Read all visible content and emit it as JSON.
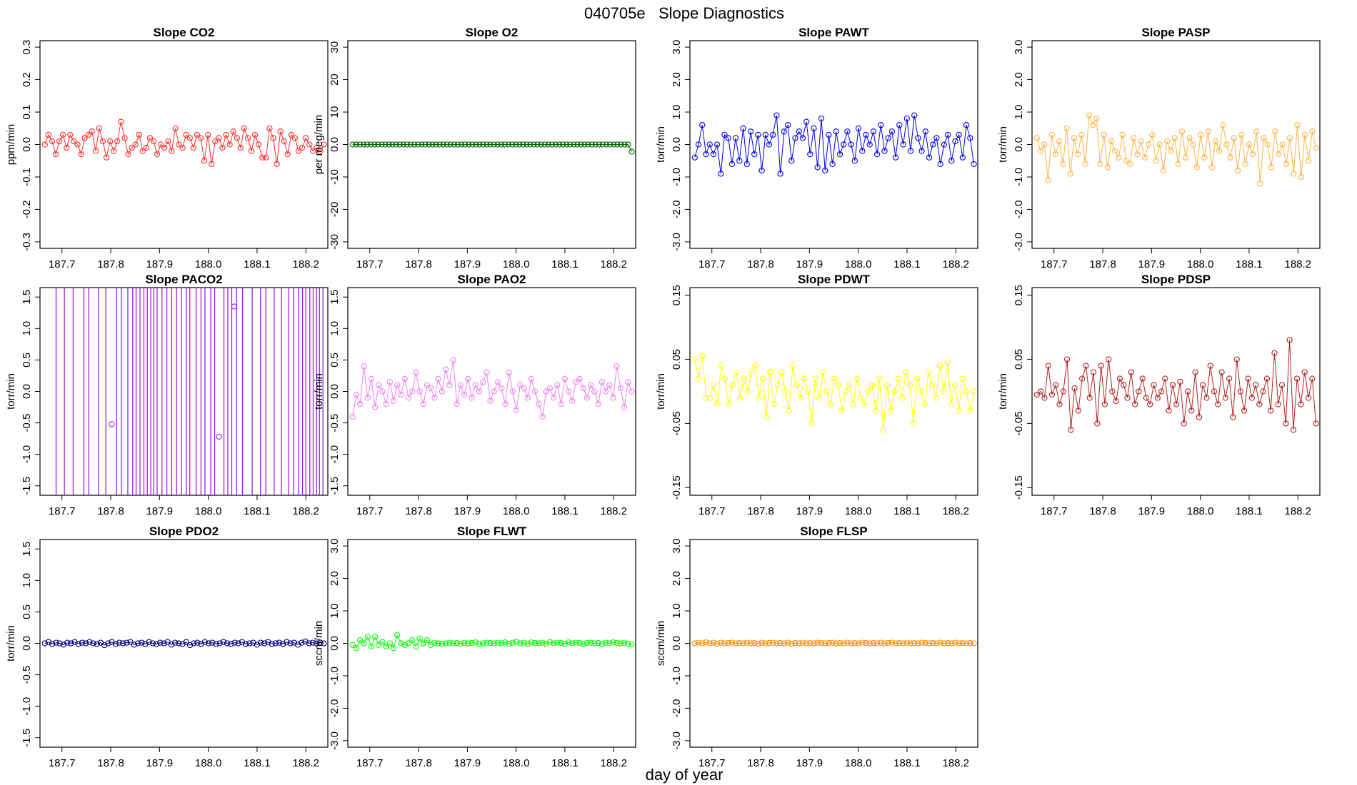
{
  "figure": {
    "title": "040705e   Slope Diagnostics",
    "xlabel": "day of year"
  },
  "chart_data": [
    {
      "id": "co2",
      "type": "scatter",
      "title": "Slope CO2",
      "ylabel": "ppm/min",
      "color": "#ff2a2a",
      "xlim": [
        187.655,
        188.245
      ],
      "ylim": [
        -0.32,
        0.32
      ],
      "xticks": [
        187.7,
        187.8,
        187.9,
        188.0,
        188.1,
        188.2
      ],
      "yticks": [
        -0.3,
        -0.2,
        -0.1,
        0.0,
        0.1,
        0.2,
        0.3
      ],
      "x_start": 187.665,
      "x_end": 188.237,
      "lines": true,
      "values": [
        0.0,
        0.03,
        0.01,
        -0.03,
        0.01,
        0.03,
        -0.01,
        0.03,
        0.01,
        0.0,
        -0.03,
        0.02,
        0.03,
        0.04,
        -0.02,
        0.05,
        0.01,
        -0.04,
        0.01,
        -0.02,
        0.01,
        0.07,
        0.02,
        -0.03,
        -0.01,
        0.0,
        0.03,
        -0.02,
        -0.01,
        0.02,
        0.01,
        -0.03,
        0.0,
        -0.01,
        0.01,
        -0.02,
        0.05,
        0.0,
        -0.01,
        0.03,
        0.02,
        -0.01,
        0.03,
        0.02,
        -0.05,
        0.03,
        -0.06,
        0.01,
        0.02,
        -0.01,
        0.03,
        0.0,
        0.04,
        0.02,
        -0.01,
        0.05,
        0.02,
        -0.02,
        0.03,
        0.0,
        -0.04,
        -0.04,
        0.05,
        0.02,
        -0.06,
        0.04,
        0.01,
        -0.03,
        0.03,
        0.02,
        -0.02,
        -0.01,
        0.02,
        0.0,
        -0.02,
        -0.01,
        -0.02,
        0.0
      ]
    },
    {
      "id": "o2",
      "type": "scatter",
      "title": "Slope O2",
      "ylabel": "per meg/min",
      "color": "#006400",
      "xlim": [
        187.655,
        188.245
      ],
      "ylim": [
        -32,
        32
      ],
      "xticks": [
        187.7,
        187.8,
        187.9,
        188.0,
        188.1,
        188.2
      ],
      "yticks": [
        -30,
        -20,
        -10,
        0,
        10,
        20,
        30
      ],
      "x_start": 187.665,
      "x_end": 188.237,
      "lines": true,
      "values": [
        0,
        0,
        0,
        0,
        0,
        0,
        0,
        0,
        0,
        0,
        0,
        0,
        0,
        0,
        0,
        0,
        0,
        0,
        0,
        0,
        0,
        0,
        0,
        0,
        0,
        0,
        0,
        0,
        0,
        0,
        0,
        0,
        0,
        0,
        0,
        0,
        0,
        0,
        0,
        0,
        0,
        0,
        0,
        0,
        0,
        0,
        0,
        0,
        0,
        0,
        0,
        0,
        0,
        0,
        0,
        0,
        0,
        0,
        0,
        0,
        0,
        0,
        0,
        0,
        0,
        0,
        0,
        0,
        0,
        0,
        0,
        0,
        0,
        0,
        0,
        0,
        0,
        -2.2
      ]
    },
    {
      "id": "pawt",
      "type": "scatter",
      "title": "Slope PAWT",
      "ylabel": "torr/min",
      "color": "#0000ee",
      "xlim": [
        187.655,
        188.245
      ],
      "ylim": [
        -3.2,
        3.2
      ],
      "xticks": [
        187.7,
        187.8,
        187.9,
        188.0,
        188.1,
        188.2
      ],
      "yticks": [
        -3,
        -2,
        -1,
        0,
        1,
        2,
        3
      ],
      "x_start": 187.665,
      "x_end": 188.237,
      "lines": true,
      "values": [
        -0.4,
        0.0,
        0.6,
        -0.3,
        0.0,
        -0.3,
        0.0,
        -0.9,
        0.3,
        0.2,
        -0.6,
        0.2,
        -0.5,
        0.5,
        -0.6,
        0.4,
        -0.3,
        0.3,
        -0.8,
        0.3,
        0.0,
        0.3,
        0.9,
        -0.9,
        0.4,
        0.6,
        -0.5,
        0.2,
        0.4,
        0.2,
        0.7,
        -0.3,
        0.5,
        -0.7,
        0.8,
        -0.8,
        0.3,
        -0.6,
        0.4,
        -0.3,
        0.0,
        0.4,
        0.0,
        -0.5,
        0.5,
        -0.2,
        0.3,
        0.0,
        0.4,
        -0.3,
        0.6,
        -0.2,
        0.2,
        0.4,
        -0.4,
        0.6,
        0.0,
        0.8,
        -0.2,
        0.9,
        0.2,
        -0.2,
        0.4,
        -0.4,
        0.0,
        0.2,
        -0.6,
        0.0,
        0.3,
        -0.5,
        0.1,
        0.3,
        -0.4,
        0.6,
        0.2,
        -0.6
      ]
    },
    {
      "id": "pasp",
      "type": "scatter",
      "title": "Slope PASP",
      "ylabel": "torr/min",
      "color": "#ffb347",
      "xlim": [
        187.655,
        188.245
      ],
      "ylim": [
        -3.2,
        3.2
      ],
      "xticks": [
        187.7,
        187.8,
        187.9,
        188.0,
        188.1,
        188.2
      ],
      "yticks": [
        -3,
        -2,
        -1,
        0,
        1,
        2,
        3
      ],
      "x_start": 187.665,
      "x_end": 188.237,
      "lines": true,
      "values": [
        0.2,
        -0.2,
        0.0,
        -1.1,
        0.3,
        -0.3,
        0.1,
        -0.6,
        0.5,
        -0.9,
        0.2,
        -0.3,
        0.3,
        -0.6,
        0.9,
        0.6,
        0.8,
        -0.6,
        0.3,
        -0.7,
        0.1,
        -0.2,
        -0.4,
        0.3,
        -0.5,
        -0.6,
        0.2,
        -0.3,
        0.1,
        -0.4,
        0.0,
        0.3,
        -0.5,
        0.0,
        -0.8,
        0.1,
        -0.2,
        0.2,
        -0.6,
        0.4,
        -0.4,
        0.2,
        0.0,
        -0.7,
        0.3,
        -0.4,
        0.4,
        -0.7,
        0.1,
        -0.2,
        0.6,
        0.0,
        -0.4,
        0.2,
        -0.8,
        0.3,
        -0.6,
        0.0,
        -0.3,
        0.4,
        -1.2,
        0.2,
        0.0,
        -0.7,
        0.4,
        -0.3,
        0.0,
        -0.6,
        0.2,
        -0.9,
        0.6,
        -1.0,
        0.3,
        -0.5,
        0.4,
        -0.1
      ]
    },
    {
      "id": "paco2",
      "type": "scatter",
      "title": "Slope PACO2",
      "ylabel": "torr/min",
      "color": "#a020f0",
      "xlim": [
        187.655,
        188.245
      ],
      "ylim": [
        -1.65,
        1.65
      ],
      "xticks": [
        187.7,
        187.8,
        187.9,
        188.0,
        188.1,
        188.2
      ],
      "yticks": [
        -1.5,
        -1.0,
        -0.5,
        0.0,
        0.5,
        1.0,
        1.5
      ],
      "lines": false,
      "points": [
        [
          187.802,
          -0.52
        ],
        [
          188.022,
          -0.72
        ],
        [
          188.053,
          1.35
        ]
      ],
      "vlines": [
        187.688,
        187.705,
        187.723,
        187.745,
        187.755,
        187.775,
        187.79,
        187.812,
        187.822,
        187.835,
        187.845,
        187.852,
        187.86,
        187.868,
        187.875,
        187.882,
        187.888,
        187.895,
        187.905,
        187.915,
        187.925,
        187.935,
        187.945,
        187.955,
        187.962,
        187.975,
        187.985,
        187.993,
        188.005,
        188.013,
        188.032,
        188.04,
        188.048,
        188.058,
        188.07,
        188.09,
        188.107,
        188.118,
        188.135,
        188.15,
        188.165,
        188.175,
        188.185,
        188.193,
        188.2,
        188.208,
        188.215,
        188.222,
        188.228,
        188.235
      ]
    },
    {
      "id": "pao2",
      "type": "scatter",
      "title": "Slope PAO2",
      "ylabel": "torr/min",
      "color": "#ee82ee",
      "xlim": [
        187.655,
        188.245
      ],
      "ylim": [
        -1.65,
        1.65
      ],
      "xticks": [
        187.7,
        187.8,
        187.9,
        188.0,
        188.1,
        188.2
      ],
      "yticks": [
        -1.5,
        -1.0,
        -0.5,
        0.0,
        0.5,
        1.0,
        1.5
      ],
      "x_start": 187.665,
      "x_end": 188.237,
      "lines": true,
      "values": [
        -0.4,
        -0.05,
        -0.2,
        0.4,
        -0.1,
        0.2,
        -0.25,
        0.1,
        0.0,
        -0.2,
        0.15,
        -0.15,
        0.1,
        -0.05,
        0.2,
        -0.1,
        0.0,
        0.3,
        0.0,
        -0.2,
        0.1,
        0.05,
        -0.1,
        0.2,
        0.0,
        0.35,
        0.1,
        0.5,
        -0.2,
        0.1,
        -0.05,
        0.2,
        -0.1,
        0.1,
        0.0,
        0.15,
        0.3,
        -0.15,
        0.0,
        0.15,
        0.05,
        -0.2,
        0.3,
        0.0,
        -0.3,
        0.1,
        0.05,
        -0.1,
        0.2,
        0.0,
        -0.2,
        -0.4,
        0.0,
        0.05,
        -0.1,
        0.1,
        -0.2,
        0.2,
        0.0,
        -0.15,
        0.15,
        0.2,
        0.05,
        -0.1,
        0.1,
        0.0,
        -0.2,
        0.15,
        0.0,
        0.1,
        -0.1,
        0.4,
        0.05,
        -0.25,
        0.15,
        0.0
      ]
    },
    {
      "id": "pdwt",
      "type": "scatter",
      "title": "Slope PDWT",
      "ylabel": "torr/min",
      "color": "#ffff00",
      "xlim": [
        187.655,
        188.245
      ],
      "ylim": [
        -0.162,
        0.162
      ],
      "xticks": [
        187.7,
        187.8,
        187.9,
        188.0,
        188.1,
        188.2
      ],
      "yticks": [
        -0.15,
        -0.05,
        0.05,
        0.15
      ],
      "x_start": 187.665,
      "x_end": 188.237,
      "lines": true,
      "values": [
        0.05,
        0.02,
        0.055,
        -0.01,
        -0.01,
        0.01,
        -0.02,
        0.04,
        0.02,
        -0.02,
        0.01,
        0.03,
        -0.01,
        0.02,
        0.0,
        0.03,
        0.04,
        -0.01,
        0.02,
        -0.04,
        0.03,
        -0.02,
        0.01,
        0.03,
        0.0,
        -0.03,
        0.04,
        0.01,
        -0.01,
        0.02,
        0.0,
        -0.05,
        0.02,
        -0.01,
        0.03,
        0.0,
        -0.02,
        0.02,
        0.01,
        -0.03,
        0.0,
        0.01,
        -0.02,
        0.02,
        -0.01,
        -0.02,
        0.0,
        0.01,
        -0.03,
        0.02,
        -0.06,
        0.01,
        -0.03,
        0.0,
        0.02,
        -0.01,
        0.03,
        0.01,
        -0.05,
        0.02,
        0.0,
        -0.02,
        0.03,
        0.01,
        -0.01,
        0.04,
        0.0,
        0.045,
        -0.02,
        0.01,
        -0.03,
        0.02,
        0.0,
        -0.03,
        0.0
      ]
    },
    {
      "id": "pdsp",
      "type": "scatter",
      "title": "Slope PDSP",
      "ylabel": "torr/min",
      "color": "#b22222",
      "xlim": [
        187.655,
        188.245
      ],
      "ylim": [
        -0.162,
        0.162
      ],
      "xticks": [
        187.7,
        187.8,
        187.9,
        188.0,
        188.1,
        188.2
      ],
      "yticks": [
        -0.15,
        -0.05,
        0.05,
        0.15
      ],
      "x_start": 187.665,
      "x_end": 188.237,
      "lines": true,
      "values": [
        -0.005,
        0.0,
        -0.01,
        0.04,
        -0.005,
        0.01,
        -0.02,
        0.0,
        0.05,
        -0.06,
        0.005,
        -0.03,
        0.02,
        0.04,
        -0.01,
        0.03,
        -0.05,
        0.04,
        -0.02,
        0.05,
        0.0,
        -0.015,
        0.02,
        0.01,
        -0.01,
        0.03,
        -0.02,
        0.0,
        0.02,
        -0.01,
        -0.02,
        0.01,
        -0.01,
        0.0,
        0.02,
        -0.03,
        0.01,
        -0.02,
        0.015,
        -0.05,
        0.0,
        -0.03,
        0.03,
        -0.04,
        0.01,
        -0.01,
        0.04,
        0.0,
        -0.02,
        0.03,
        -0.01,
        0.02,
        -0.04,
        0.05,
        0.0,
        -0.03,
        0.02,
        -0.01,
        0.01,
        -0.02,
        0.0,
        0.02,
        -0.03,
        0.06,
        -0.02,
        0.01,
        -0.05,
        0.08,
        -0.06,
        0.02,
        -0.02,
        0.03,
        -0.01,
        0.02,
        -0.05
      ]
    },
    {
      "id": "pdo2",
      "type": "scatter",
      "title": "Slope PDO2",
      "ylabel": "torr/min",
      "color": "#000080",
      "xlim": [
        187.655,
        188.245
      ],
      "ylim": [
        -1.65,
        1.65
      ],
      "xticks": [
        187.7,
        187.8,
        187.9,
        188.0,
        188.1,
        188.2
      ],
      "yticks": [
        -1.5,
        -1.0,
        -0.5,
        0.0,
        0.5,
        1.0,
        1.5
      ],
      "x_start": 187.665,
      "x_end": 188.237,
      "lines": true,
      "values": [
        0.0,
        0.02,
        -0.01,
        0.01,
        0.0,
        -0.02,
        0.01,
        0.0,
        0.02,
        -0.01,
        0.01,
        0.0,
        0.02,
        0.0,
        -0.01,
        0.01,
        -0.03,
        0.0,
        0.02,
        -0.01,
        0.01,
        0.0,
        0.01,
        0.02,
        -0.02,
        0.0,
        0.01,
        -0.01,
        0.02,
        0.0,
        -0.01,
        0.01,
        0.0,
        0.02,
        -0.02,
        0.01,
        0.0,
        -0.01,
        0.02,
        -0.03,
        0.0,
        0.01,
        -0.01,
        0.02,
        0.0,
        0.01,
        -0.01,
        0.0,
        0.02,
        0.0,
        -0.01,
        0.01,
        0.0,
        0.02,
        -0.01,
        0.0,
        0.01,
        -0.02,
        0.01,
        0.0,
        0.02,
        -0.01,
        0.0,
        0.01,
        -0.01,
        0.02,
        0.0,
        0.01,
        -0.02,
        0.01,
        0.03,
        0.0,
        0.01,
        0.0,
        0.01,
        0.0
      ]
    },
    {
      "id": "flwt",
      "type": "scatter",
      "title": "Slope FLWT",
      "ylabel": "sccm/min",
      "color": "#00ff00",
      "xlim": [
        187.655,
        188.245
      ],
      "ylim": [
        -3.2,
        3.2
      ],
      "xticks": [
        187.7,
        187.8,
        187.9,
        188.0,
        188.1,
        188.2
      ],
      "yticks": [
        -3,
        -2,
        -1,
        0,
        1,
        2,
        3
      ],
      "x_start": 187.665,
      "x_end": 188.237,
      "lines": true,
      "values": [
        -0.05,
        -0.15,
        0.1,
        0.0,
        0.2,
        -0.1,
        0.2,
        -0.05,
        0.05,
        -0.1,
        0.0,
        -0.15,
        0.25,
        0.0,
        -0.05,
        0.0,
        0.1,
        -0.1,
        0.15,
        0.0,
        0.1,
        -0.05,
        0.02,
        0.0,
        -0.02,
        0.0,
        0.02,
        0.0,
        0.01,
        -0.01,
        0.02,
        0.0,
        0.01,
        0.03,
        -0.02,
        0.0,
        0.02,
        0.01,
        0.0,
        0.02,
        0.0,
        0.03,
        -0.01,
        0.02,
        0.05,
        0.0,
        0.02,
        -0.02,
        0.03,
        0.01,
        0.0,
        0.02,
        -0.01,
        0.04,
        0.0,
        0.02,
        0.01,
        -0.01,
        0.03,
        0.0,
        0.02,
        0.01,
        -0.02,
        0.01,
        0.02,
        0.0,
        0.01,
        -0.02,
        0.02,
        0.0,
        0.03,
        0.01,
        0.0,
        0.02,
        -0.01,
        -0.03
      ]
    },
    {
      "id": "flsp",
      "type": "scatter",
      "title": "Slope FLSP",
      "ylabel": "sccm/min",
      "color": "#ff8c00",
      "xlim": [
        187.655,
        188.245
      ],
      "ylim": [
        -3.2,
        3.2
      ],
      "xticks": [
        187.7,
        187.8,
        187.9,
        188.0,
        188.1,
        188.2
      ],
      "yticks": [
        -3,
        -2,
        -1,
        0,
        1,
        2,
        3
      ],
      "x_start": 187.665,
      "x_end": 188.237,
      "lines": true,
      "values": [
        0.0,
        0.02,
        0.0,
        0.03,
        0.0,
        0.02,
        -0.01,
        0.02,
        0.0,
        0.01,
        0.02,
        0.0,
        0.01,
        0.0,
        0.02,
        0.0,
        0.01,
        -0.01,
        0.02,
        0.0,
        0.01,
        0.02,
        0.0,
        0.01,
        0.0,
        0.02,
        -0.01,
        0.01,
        0.0,
        0.02,
        0.0,
        0.01,
        0.0,
        0.02,
        0.01,
        0.0,
        0.01,
        0.02,
        0.0,
        0.01,
        0.0,
        0.02,
        0.0,
        0.01,
        0.0,
        0.02,
        0.01,
        0.0,
        0.01,
        0.0,
        0.02,
        0.0,
        0.01,
        0.02,
        0.0,
        0.01,
        0.0,
        0.02,
        0.0,
        0.01,
        0.0,
        0.02,
        0.01,
        0.0,
        0.01,
        0.0,
        0.02,
        0.0,
        0.01,
        0.0,
        0.02,
        0.0,
        0.01,
        0.0,
        0.01,
        0.0
      ]
    }
  ]
}
